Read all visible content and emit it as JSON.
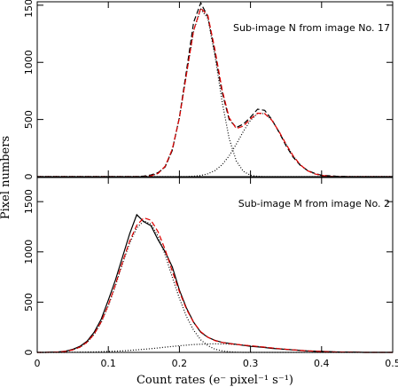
{
  "chart_data": [
    {
      "type": "line",
      "annotation": "Sub-image N from image No. 17",
      "xlim": [
        0,
        0.5
      ],
      "xticks": [
        0,
        0.1,
        0.2,
        0.3,
        0.4,
        0.5
      ],
      "ylim": [
        0,
        1530
      ],
      "yticks": [
        0,
        500,
        1000,
        1500
      ],
      "x": [
        0,
        0.01,
        0.02,
        0.03,
        0.04,
        0.05,
        0.06,
        0.07,
        0.08,
        0.09,
        0.1,
        0.11,
        0.12,
        0.13,
        0.14,
        0.15,
        0.16,
        0.17,
        0.18,
        0.19,
        0.2,
        0.21,
        0.22,
        0.23,
        0.24,
        0.25,
        0.26,
        0.27,
        0.28,
        0.29,
        0.3,
        0.31,
        0.32,
        0.33,
        0.34,
        0.35,
        0.36,
        0.37,
        0.38,
        0.39,
        0.4,
        0.41,
        0.42,
        0.43,
        0.44,
        0.45,
        0.46,
        0.47,
        0.48,
        0.49,
        0.5
      ],
      "series": [
        {
          "color": "#000000",
          "dash": "6,3",
          "values": [
            0,
            0,
            0,
            0,
            0,
            0,
            0,
            0,
            0,
            0,
            0,
            0,
            0,
            0,
            0,
            5,
            15,
            35,
            85,
            230,
            520,
            930,
            1350,
            1520,
            1400,
            1080,
            740,
            500,
            430,
            460,
            520,
            590,
            580,
            500,
            390,
            270,
            170,
            100,
            55,
            30,
            12,
            8,
            4,
            2,
            0,
            0,
            0,
            0,
            0,
            0,
            0
          ]
        },
        {
          "color": "#000000",
          "dash": "1,2",
          "values": [
            0,
            0,
            0,
            0,
            0,
            0,
            0,
            0,
            0,
            0,
            0,
            0,
            0,
            0,
            0,
            0,
            7,
            28,
            91,
            240,
            514,
            898,
            1275,
            1465,
            1385,
            1059,
            658,
            333,
            137,
            46,
            12,
            3,
            0,
            0,
            0,
            0,
            0,
            0,
            0,
            0,
            0,
            0,
            0,
            0,
            0,
            0,
            0,
            0,
            0,
            0,
            0
          ]
        },
        {
          "color": "#000000",
          "dash": "1,2",
          "values": [
            0,
            0,
            0,
            0,
            0,
            0,
            0,
            0,
            0,
            0,
            0,
            0,
            0,
            0,
            0,
            0,
            0,
            0,
            0,
            0,
            0,
            0,
            4,
            10,
            25,
            53,
            104,
            182,
            284,
            396,
            494,
            552,
            552,
            494,
            396,
            284,
            182,
            104,
            53,
            25,
            10,
            4,
            0,
            0,
            0,
            0,
            0,
            0,
            0,
            0,
            0
          ]
        },
        {
          "color": "#e00000",
          "dash": "6,3",
          "values": [
            0,
            0,
            0,
            0,
            0,
            0,
            0,
            0,
            0,
            0,
            0,
            0,
            0,
            0,
            0,
            0,
            7,
            28,
            91,
            240,
            514,
            898,
            1279,
            1475,
            1410,
            1112,
            762,
            515,
            421,
            442,
            506,
            555,
            552,
            494,
            396,
            284,
            182,
            104,
            53,
            25,
            10,
            4,
            0,
            0,
            0,
            0,
            0,
            0,
            0,
            0,
            0
          ]
        }
      ]
    },
    {
      "type": "line",
      "annotation": "Sub-image M from  image No. 2",
      "xlabel": "Count rates (e⁻ pixel⁻¹ s⁻¹)",
      "ylabel": "Pixel numbers",
      "xlim": [
        0,
        0.5
      ],
      "xticks": [
        0,
        0.1,
        0.2,
        0.3,
        0.4,
        0.5
      ],
      "ylim": [
        0,
        1740
      ],
      "yticks": [
        0,
        500,
        1000,
        1500
      ],
      "x": [
        0,
        0.01,
        0.02,
        0.03,
        0.04,
        0.05,
        0.06,
        0.07,
        0.08,
        0.09,
        0.1,
        0.11,
        0.12,
        0.13,
        0.14,
        0.15,
        0.16,
        0.17,
        0.18,
        0.19,
        0.2,
        0.21,
        0.22,
        0.23,
        0.24,
        0.25,
        0.26,
        0.27,
        0.28,
        0.29,
        0.3,
        0.31,
        0.32,
        0.33,
        0.34,
        0.35,
        0.36,
        0.37,
        0.38,
        0.39,
        0.4,
        0.41,
        0.42,
        0.43,
        0.44,
        0.45,
        0.46,
        0.47,
        0.48,
        0.49,
        0.5
      ],
      "series": [
        {
          "color": "#000000",
          "dash": "none",
          "values": [
            0,
            0,
            2,
            5,
            12,
            30,
            60,
            110,
            200,
            330,
            520,
            720,
            950,
            1180,
            1370,
            1300,
            1260,
            1120,
            1000,
            850,
            620,
            440,
            300,
            200,
            150,
            120,
            100,
            90,
            80,
            70,
            60,
            55,
            48,
            40,
            35,
            30,
            25,
            20,
            15,
            12,
            10,
            8,
            5,
            4,
            3,
            2,
            0,
            0,
            0,
            0,
            0
          ]
        },
        {
          "color": "#000000",
          "dash": "1,2",
          "values": [
            0,
            0,
            1,
            4,
            10,
            24,
            50,
            98,
            177,
            298,
            463,
            663,
            883,
            1087,
            1239,
            1308,
            1278,
            1156,
            970,
            748,
            538,
            357,
            220,
            125,
            67,
            32,
            15,
            6,
            2,
            0,
            0,
            0,
            0,
            0,
            0,
            0,
            0,
            0,
            0,
            0,
            0,
            0,
            0,
            0,
            0,
            0,
            0,
            0,
            0,
            0,
            0
          ]
        },
        {
          "color": "#000000",
          "dash": "1,2",
          "values": [
            0,
            0,
            0,
            0,
            0,
            1,
            2,
            3,
            4,
            6,
            9,
            12,
            15,
            20,
            25,
            31,
            37,
            44,
            52,
            59,
            66,
            72,
            78,
            81,
            84,
            85,
            84,
            81,
            78,
            72,
            66,
            59,
            52,
            44,
            37,
            31,
            25,
            20,
            15,
            12,
            9,
            6,
            4,
            3,
            2,
            1,
            0,
            0,
            0,
            0,
            0
          ]
        },
        {
          "color": "#e00000",
          "dash": "6,3",
          "values": [
            0,
            0,
            1,
            4,
            10,
            25,
            52,
            101,
            181,
            304,
            472,
            675,
            898,
            1107,
            1264,
            1339,
            1315,
            1200,
            1022,
            807,
            604,
            429,
            298,
            206,
            151,
            117,
            99,
            87,
            80,
            72,
            66,
            59,
            52,
            44,
            37,
            31,
            25,
            20,
            15,
            12,
            9,
            6,
            4,
            3,
            2,
            1,
            0,
            0,
            0,
            0,
            0
          ]
        }
      ]
    }
  ]
}
